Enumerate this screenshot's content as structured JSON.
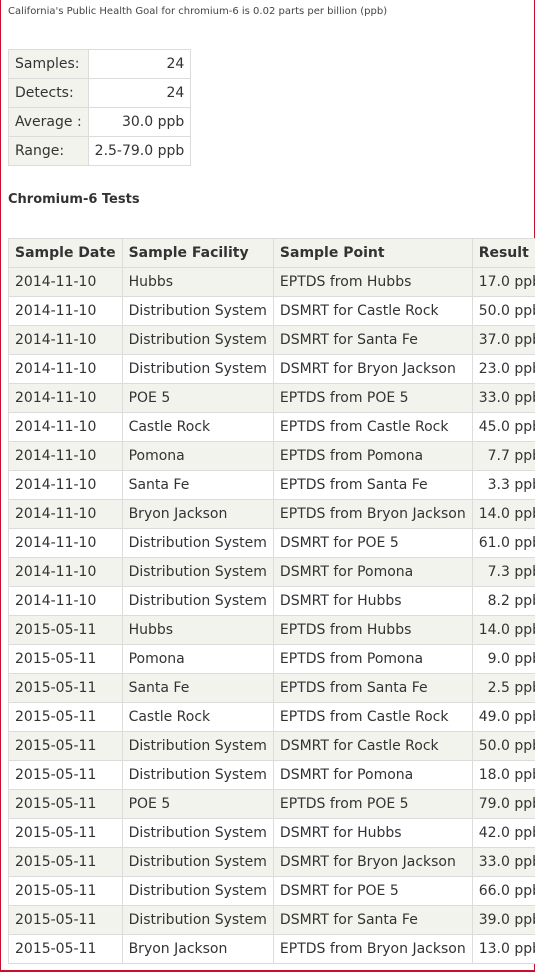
{
  "note": "California's Public Health Goal for chromium-6 is 0.02 parts per billion (ppb)",
  "summary": [
    {
      "label": "Samples:",
      "value": "24"
    },
    {
      "label": "Detects:",
      "value": "24"
    },
    {
      "label": "Average :",
      "value": "30.0 ppb"
    },
    {
      "label": "Range:",
      "value": "2.5-79.0 ppb"
    }
  ],
  "section_title": "Chromium-6 Tests",
  "columns": [
    "Sample Date",
    "Sample Facility",
    "Sample Point",
    "Result"
  ],
  "rows": [
    [
      "2014-11-10",
      "Hubbs",
      "EPTDS from Hubbs",
      "17.0 ppb"
    ],
    [
      "2014-11-10",
      "Distribution System",
      "DSMRT for Castle Rock",
      "50.0 ppb"
    ],
    [
      "2014-11-10",
      "Distribution System",
      "DSMRT for Santa Fe",
      "37.0 ppb"
    ],
    [
      "2014-11-10",
      "Distribution System",
      "DSMRT for Bryon Jackson",
      "23.0 ppb"
    ],
    [
      "2014-11-10",
      "POE 5",
      "EPTDS from POE 5",
      "33.0 ppb"
    ],
    [
      "2014-11-10",
      "Castle Rock",
      "EPTDS from Castle Rock",
      "45.0 ppb"
    ],
    [
      "2014-11-10",
      "Pomona",
      "EPTDS from Pomona",
      "7.7 ppb"
    ],
    [
      "2014-11-10",
      "Santa Fe",
      "EPTDS from Santa Fe",
      "3.3 ppb"
    ],
    [
      "2014-11-10",
      "Bryon Jackson",
      "EPTDS from Bryon Jackson",
      "14.0 ppb"
    ],
    [
      "2014-11-10",
      "Distribution System",
      "DSMRT for POE 5",
      "61.0 ppb"
    ],
    [
      "2014-11-10",
      "Distribution System",
      "DSMRT for Pomona",
      "7.3 ppb"
    ],
    [
      "2014-11-10",
      "Distribution System",
      "DSMRT for Hubbs",
      "8.2 ppb"
    ],
    [
      "2015-05-11",
      "Hubbs",
      "EPTDS from Hubbs",
      "14.0 ppb"
    ],
    [
      "2015-05-11",
      "Pomona",
      "EPTDS from Pomona",
      "9.0 ppb"
    ],
    [
      "2015-05-11",
      "Santa Fe",
      "EPTDS from Santa Fe",
      "2.5 ppb"
    ],
    [
      "2015-05-11",
      "Castle Rock",
      "EPTDS from Castle Rock",
      "49.0 ppb"
    ],
    [
      "2015-05-11",
      "Distribution System",
      "DSMRT for Castle Rock",
      "50.0 ppb"
    ],
    [
      "2015-05-11",
      "Distribution System",
      "DSMRT for Pomona",
      "18.0 ppb"
    ],
    [
      "2015-05-11",
      "POE 5",
      "EPTDS from POE 5",
      "79.0 ppb"
    ],
    [
      "2015-05-11",
      "Distribution System",
      "DSMRT for Hubbs",
      "42.0 ppb"
    ],
    [
      "2015-05-11",
      "Distribution System",
      "DSMRT for Bryon Jackson",
      "33.0 ppb"
    ],
    [
      "2015-05-11",
      "Distribution System",
      "DSMRT for POE 5",
      "66.0 ppb"
    ],
    [
      "2015-05-11",
      "Distribution System",
      "DSMRT for Santa Fe",
      "39.0 ppb"
    ],
    [
      "2015-05-11",
      "Bryon Jackson",
      "EPTDS from Bryon Jackson",
      "13.0 ppb"
    ]
  ]
}
